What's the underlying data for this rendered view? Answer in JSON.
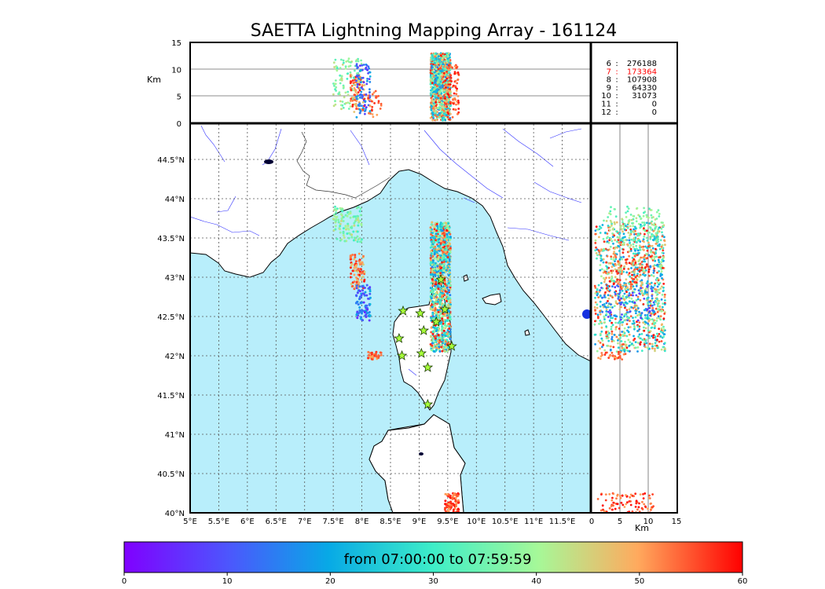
{
  "chart_data": {
    "type": "scatter",
    "title": "SAETTA Lightning Mapping Array - 161124",
    "time_window_label": "from 07:00:00 to 07:59:59",
    "map": {
      "lon_range": [
        5.0,
        12.0
      ],
      "lat_range": [
        40.0,
        44.95
      ],
      "lon_ticks": [
        5,
        5.5,
        6,
        6.5,
        7,
        7.5,
        8,
        8.5,
        9,
        9.5,
        10,
        10.5,
        11,
        11.5
      ],
      "lon_tick_labels": [
        "5°E",
        "5.5°E",
        "6°E",
        "6.5°E",
        "7°E",
        "7.5°E",
        "8°E",
        "8.5°E",
        "9°E",
        "9.5°E",
        "10°E",
        "10.5°E",
        "11°E",
        "11.5°E"
      ],
      "lat_ticks": [
        40,
        40.5,
        41,
        41.5,
        42,
        42.5,
        43,
        43.5,
        44,
        44.5
      ],
      "lat_tick_labels": [
        "40°N",
        "40.5°N",
        "41°N",
        "41.5°N",
        "42°N",
        "42.5°N",
        "43°N",
        "43.5°N",
        "44°N",
        "44.5°N"
      ],
      "grid": "dotted"
    },
    "altitude_axis": {
      "label": "Km",
      "range": [
        0,
        15
      ],
      "ticks": [
        0,
        5,
        10,
        15
      ],
      "tick_labels": [
        "0",
        "5",
        "10",
        "15"
      ],
      "top_panel_tick_labels": [
        "15",
        "10",
        "5",
        "0"
      ]
    },
    "colorbar": {
      "range": [
        0,
        60
      ],
      "ticks": [
        0,
        10,
        20,
        30,
        40,
        50,
        60
      ],
      "tick_labels": [
        "0",
        "10",
        "20",
        "30",
        "40",
        "50",
        "60"
      ],
      "colormap": "rainbow"
    },
    "station_counts": [
      {
        "stations": "6",
        "count": "276188",
        "highlight": false
      },
      {
        "stations": "7",
        "count": "173364",
        "highlight": true
      },
      {
        "stations": "8",
        "count": "107908",
        "highlight": false
      },
      {
        "stations": "9",
        "count": "64330",
        "highlight": false
      },
      {
        "stations": "10",
        "count": "31073",
        "highlight": false
      },
      {
        "stations": "11",
        "count": "0",
        "highlight": false
      },
      {
        "stations": "12",
        "count": "0",
        "highlight": false
      }
    ],
    "stations": [
      {
        "lon": 8.72,
        "lat": 42.57
      },
      {
        "lon": 9.02,
        "lat": 42.54
      },
      {
        "lon": 9.45,
        "lat": 42.59
      },
      {
        "lon": 9.3,
        "lat": 42.43
      },
      {
        "lon": 9.08,
        "lat": 42.32
      },
      {
        "lon": 8.65,
        "lat": 42.22
      },
      {
        "lon": 9.57,
        "lat": 42.12
      },
      {
        "lon": 9.04,
        "lat": 42.03
      },
      {
        "lon": 8.7,
        "lat": 42.0
      },
      {
        "lon": 9.15,
        "lat": 41.85
      },
      {
        "lon": 9.15,
        "lat": 41.38
      },
      {
        "lon": 9.38,
        "lat": 42.97
      }
    ],
    "clusters": [
      {
        "name": "corsica-cape-storm",
        "lon": [
          9.2,
          9.55
        ],
        "lat": [
          42.05,
          43.7
        ],
        "time": [
          15,
          60
        ],
        "alt": [
          0.5,
          13
        ],
        "n": 1100
      },
      {
        "name": "ligurian-north",
        "lon": [
          7.5,
          8.0
        ],
        "lat": [
          43.45,
          43.9
        ],
        "time": [
          30,
          45
        ],
        "alt": [
          2,
          12
        ],
        "n": 110
      },
      {
        "name": "ligurian-mid",
        "lon": [
          7.8,
          8.05
        ],
        "lat": [
          42.85,
          43.3
        ],
        "time": [
          45,
          60
        ],
        "alt": [
          2,
          9
        ],
        "n": 90
      },
      {
        "name": "ligurian-south",
        "lon": [
          7.9,
          8.15
        ],
        "lat": [
          42.45,
          42.9
        ],
        "time": [
          5,
          22
        ],
        "alt": [
          1,
          11
        ],
        "n": 90
      },
      {
        "name": "small-south",
        "lon": [
          8.1,
          8.35
        ],
        "lat": [
          41.95,
          42.05
        ],
        "time": [
          50,
          58
        ],
        "alt": [
          1,
          6
        ],
        "n": 30
      },
      {
        "name": "sardinia-east",
        "lon": [
          9.45,
          9.7
        ],
        "lat": [
          40.0,
          40.25
        ],
        "time": [
          50,
          60
        ],
        "alt": [
          0.5,
          11
        ],
        "n": 90
      }
    ]
  }
}
